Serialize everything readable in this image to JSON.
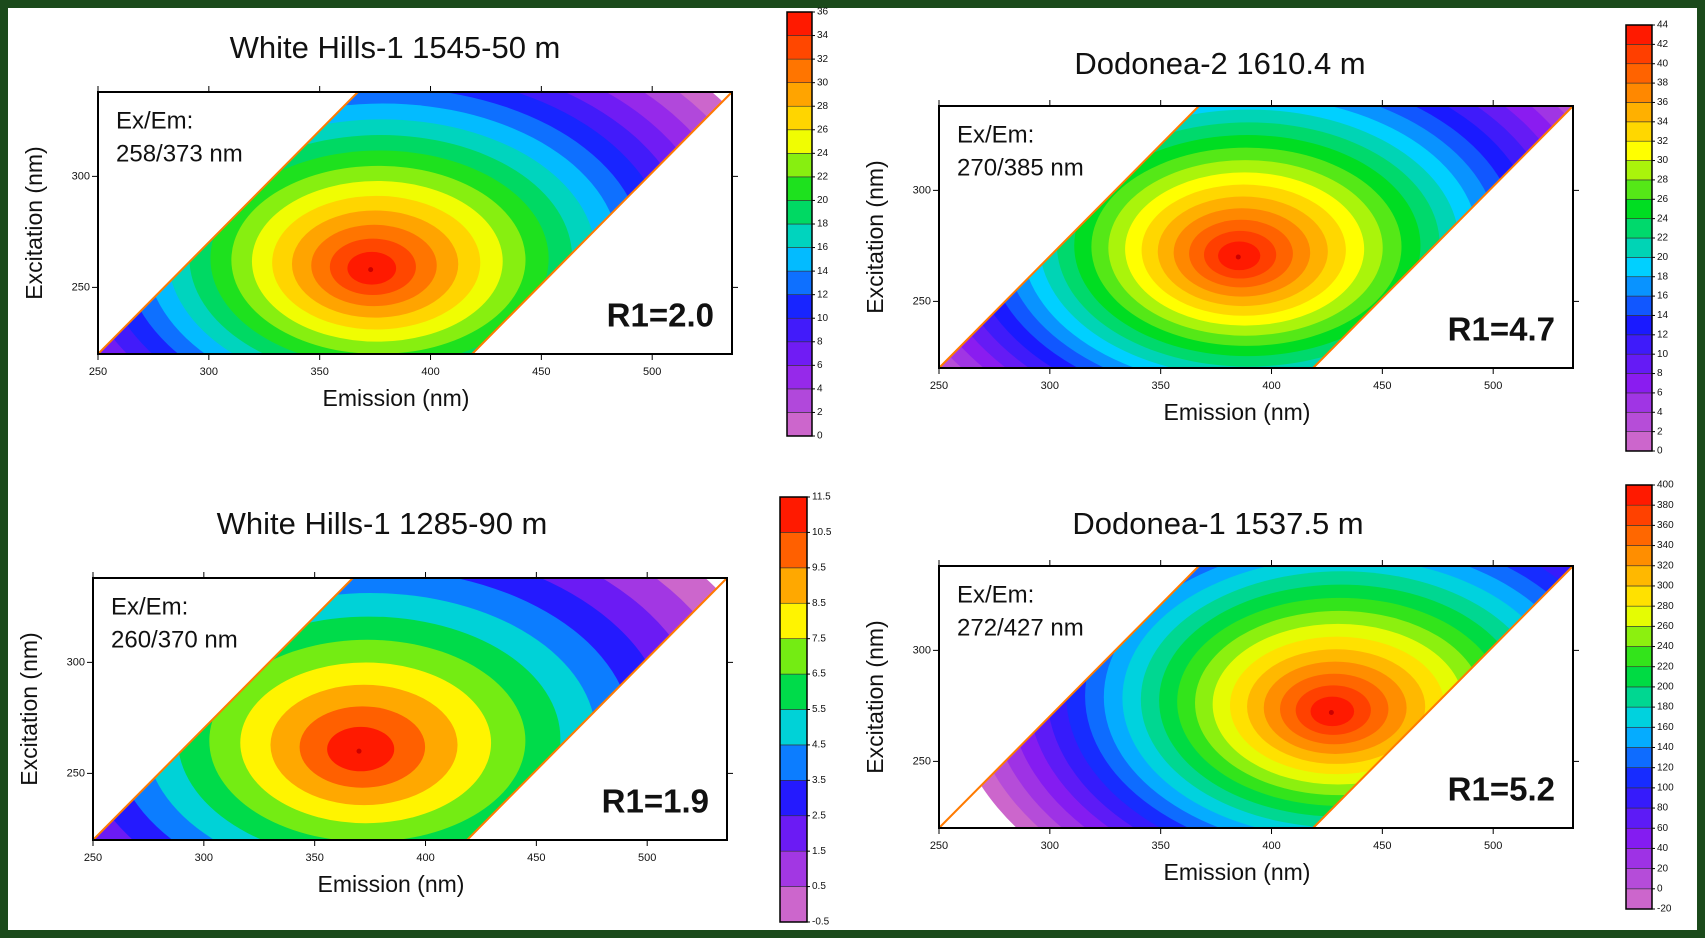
{
  "chart_data": [
    {
      "type": "contour",
      "title": "White Hills-1 1545-50 m",
      "xlabel": "Emission (nm)",
      "ylabel": "Excitation (nm)",
      "xlim": [
        250,
        536
      ],
      "ylim": [
        220,
        338
      ],
      "xticks": [
        250,
        300,
        350,
        400,
        450,
        500
      ],
      "yticks": [
        250,
        300
      ],
      "peak": {
        "em": 373,
        "ex": 258
      },
      "peak_label": [
        "Ex/Em:",
        "258/373 nm"
      ],
      "annotation": "R1=2.0",
      "colorbar_ticks": [
        0,
        2,
        4,
        6,
        8,
        10,
        12,
        14,
        16,
        18,
        20,
        22,
        24,
        26,
        28,
        30,
        32,
        34,
        36
      ],
      "colormap": [
        "#cc66cc",
        "#8a1cf0",
        "#1a1aff",
        "#00d0ff",
        "#00dd22",
        "#ffff00",
        "#ff8800",
        "#ff1a00"
      ]
    },
    {
      "type": "contour",
      "title": "Dodonea-2 1610.4 m",
      "xlabel": "Emission (nm)",
      "ylabel": "Excitation (nm)",
      "xlim": [
        250,
        536
      ],
      "ylim": [
        220,
        338
      ],
      "xticks": [
        250,
        300,
        350,
        400,
        450,
        500
      ],
      "yticks": [
        250,
        300
      ],
      "peak": {
        "em": 385,
        "ex": 270
      },
      "peak_label": [
        "Ex/Em:",
        "270/385 nm"
      ],
      "annotation": "R1=4.7",
      "colorbar_ticks": [
        0,
        2,
        4,
        6,
        8,
        10,
        12,
        14,
        16,
        18,
        20,
        22,
        24,
        26,
        28,
        30,
        32,
        34,
        36,
        38,
        40,
        42,
        44
      ],
      "colormap": [
        "#cc66cc",
        "#8a1cf0",
        "#1a1aff",
        "#00d0ff",
        "#00dd22",
        "#ffff00",
        "#ff8800",
        "#ff1a00"
      ]
    },
    {
      "type": "contour",
      "title": "White Hills-1 1285-90 m",
      "xlabel": "Emission (nm)",
      "ylabel": "Excitation (nm)",
      "xlim": [
        250,
        536
      ],
      "ylim": [
        220,
        338
      ],
      "xticks": [
        250,
        300,
        350,
        400,
        450,
        500
      ],
      "yticks": [
        250,
        300
      ],
      "peak": {
        "em": 370,
        "ex": 260
      },
      "peak_label": [
        "Ex/Em:",
        "260/370 nm"
      ],
      "annotation": "R1=1.9",
      "colorbar_ticks": [
        -0.5,
        0.5,
        1.5,
        2.5,
        3.5,
        4.5,
        5.5,
        6.5,
        7.5,
        8.5,
        9.5,
        10.5,
        11.5
      ],
      "colormap": [
        "#cc66cc",
        "#8a1cf0",
        "#1a1aff",
        "#00d0ff",
        "#00dd22",
        "#ffff00",
        "#ff8800",
        "#ff1a00"
      ]
    },
    {
      "type": "contour",
      "title": "Dodonea-1 1537.5 m",
      "xlabel": "Emission (nm)",
      "ylabel": "Excitation (nm)",
      "xlim": [
        250,
        536
      ],
      "ylim": [
        220,
        338
      ],
      "xticks": [
        250,
        300,
        350,
        400,
        450,
        500
      ],
      "yticks": [
        250,
        300
      ],
      "peak": {
        "em": 427,
        "ex": 272
      },
      "peak_label": [
        "Ex/Em:",
        "272/427 nm"
      ],
      "annotation": "R1=5.2",
      "colorbar_ticks": [
        -20,
        0,
        20,
        40,
        60,
        80,
        100,
        120,
        140,
        160,
        180,
        200,
        220,
        240,
        260,
        280,
        300,
        320,
        340,
        360,
        380,
        400
      ],
      "colormap": [
        "#cc66cc",
        "#8a1cf0",
        "#1a1aff",
        "#00d0ff",
        "#00dd22",
        "#ffff00",
        "#ff8800",
        "#ff1a00"
      ]
    }
  ]
}
